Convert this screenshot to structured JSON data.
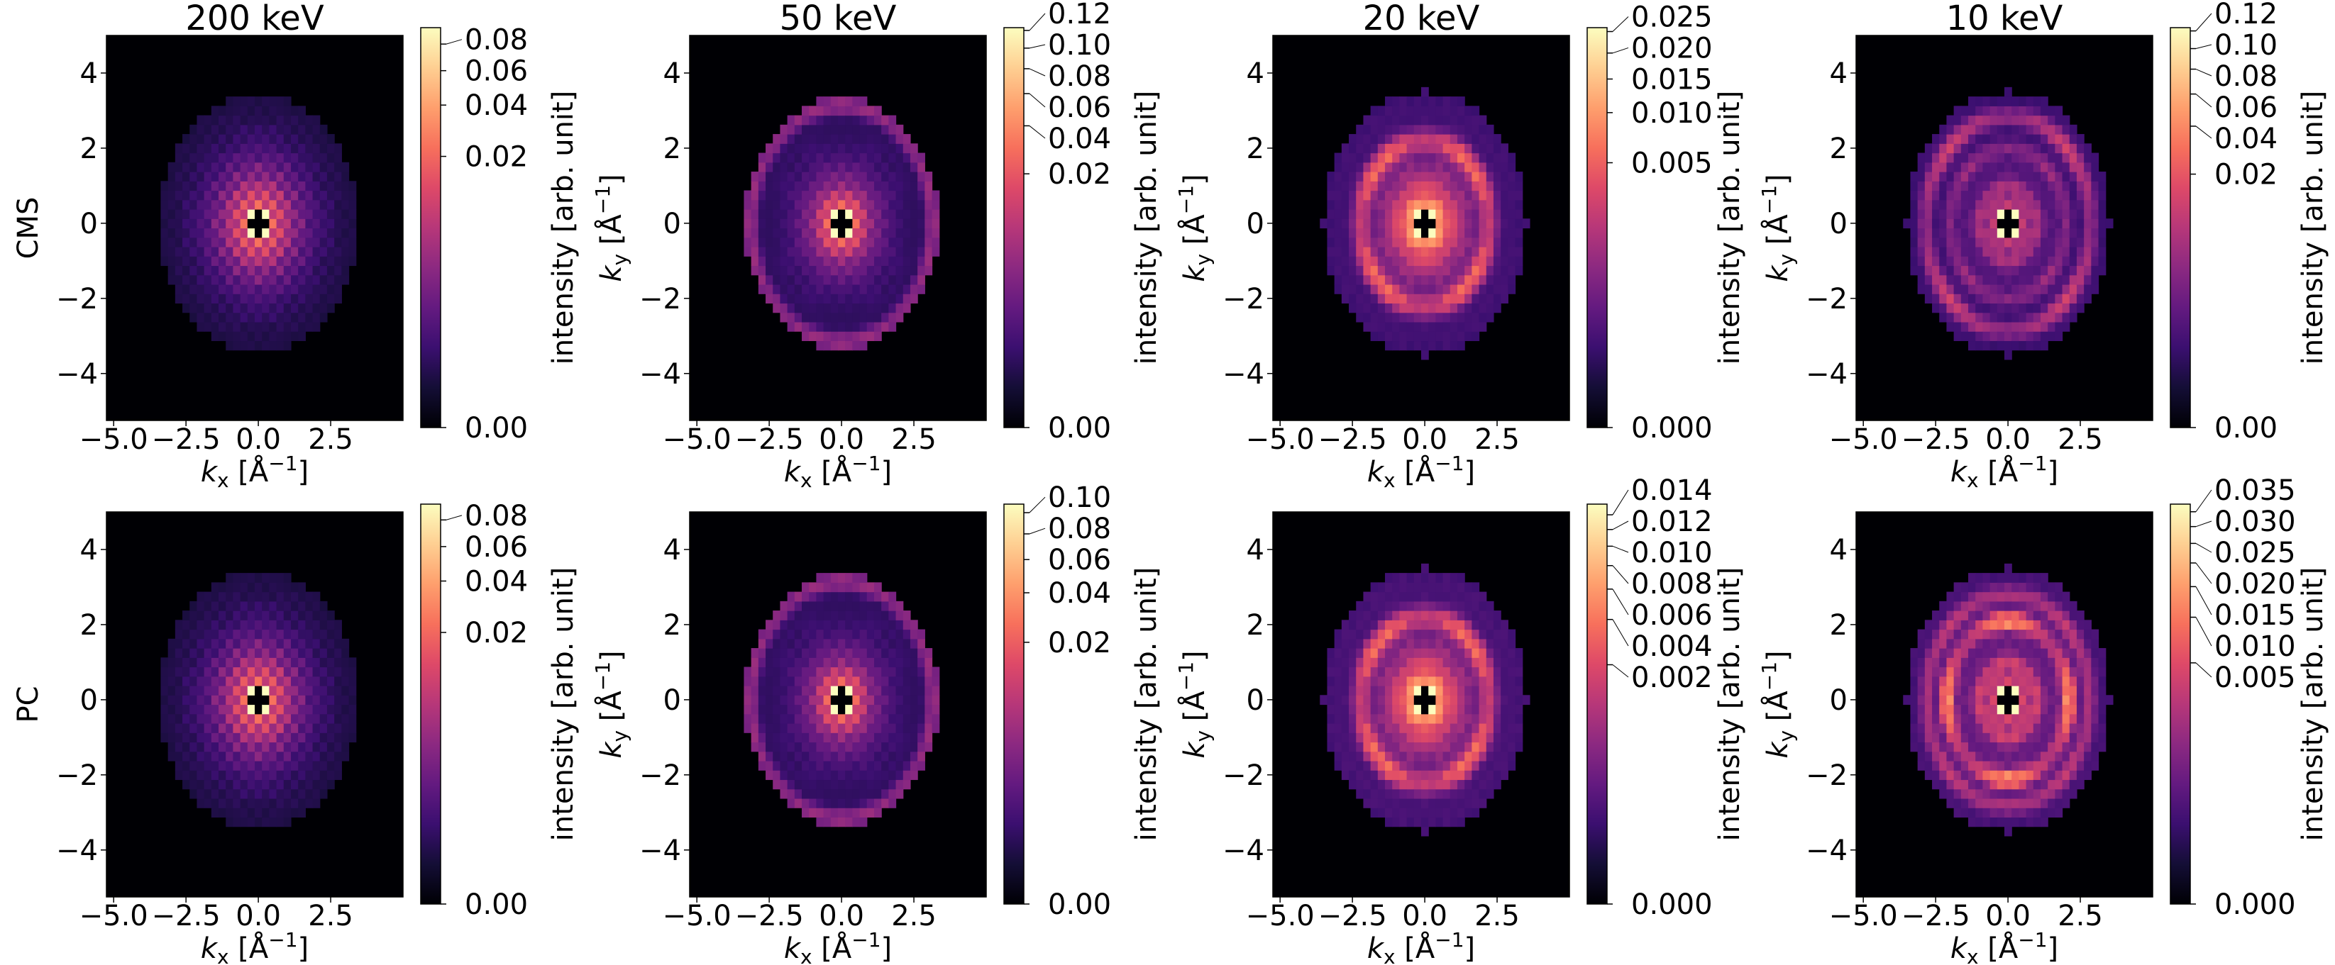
{
  "figure": {
    "row_labels": [
      "CMS",
      "PC"
    ],
    "column_titles": [
      "200 keV",
      "50 keV",
      "20 keV",
      "10 keV"
    ]
  },
  "chart_data": [
    {
      "type": "heatmap",
      "row": "CMS",
      "title": "200 keV",
      "colormap": "magma",
      "background": "#000004",
      "xlabel": {
        "var": "k",
        "sub": "x",
        "unit": " [Å",
        "exp": "−1",
        "close": "]"
      },
      "ylabel": {
        "var": "k",
        "sub": "y",
        "unit": " [Å",
        "exp": "−1",
        "close": "]"
      },
      "xlim": [
        -5.25,
        5.0
      ],
      "ylim": [
        -5.25,
        5.0
      ],
      "xticks": [
        -5.0,
        -2.5,
        0.0,
        2.5
      ],
      "xtick_labels": [
        "−5.0",
        "−2.5",
        "0.0",
        "2.5"
      ],
      "yticks": [
        4,
        2,
        0,
        -2,
        -4
      ],
      "ytick_labels": [
        "4",
        "2",
        "0",
        "−2",
        "−4"
      ],
      "colorbar": {
        "label": "intensity [arb. unit]",
        "norm": "power",
        "gamma": 0.25,
        "vmin": 0,
        "vmax": 0.0946,
        "ticks": [
          0,
          0.02,
          0.04,
          0.06,
          0.08
        ],
        "tick_labels": [
          "0.00",
          "0.02",
          "0.04",
          "0.06",
          "0.08"
        ]
      },
      "pixel_size": 0.25,
      "cutoff_radius": 3.45,
      "center_mask": "cross",
      "diagonal_peak": 0.1,
      "central_decay": {
        "amplitude": 0.09,
        "length": 0.35,
        "checker": 0.5
      },
      "rings": [],
      "background_level": 2e-05
    },
    {
      "type": "heatmap",
      "row": "CMS",
      "title": "50 keV",
      "colormap": "magma",
      "background": "#000004",
      "xlabel": {
        "var": "k",
        "sub": "x",
        "unit": " [Å",
        "exp": "−1",
        "close": "]"
      },
      "ylabel": {
        "var": "k",
        "sub": "y",
        "unit": " [Å",
        "exp": "−1",
        "close": "]"
      },
      "xlim": [
        -5.25,
        5.0
      ],
      "ylim": [
        -5.25,
        5.0
      ],
      "xticks": [
        -5.0,
        -2.5,
        0.0,
        2.5
      ],
      "xtick_labels": [
        "−5.0",
        "−2.5",
        "0.0",
        "2.5"
      ],
      "yticks": [
        4,
        2,
        0,
        -2,
        -4
      ],
      "ytick_labels": [
        "4",
        "2",
        "0",
        "−2",
        "−4"
      ],
      "colorbar": {
        "label": "intensity [arb. unit]",
        "norm": "power",
        "gamma": 0.25,
        "vmin": 0,
        "vmax": 0.1234,
        "ticks": [
          0,
          0.02,
          0.04,
          0.06,
          0.08,
          0.1,
          0.12
        ],
        "tick_labels": [
          "0.00",
          "0.02",
          "0.04",
          "0.06",
          "0.08",
          "0.10",
          "0.12"
        ]
      },
      "pixel_size": 0.25,
      "cutoff_radius": 3.35,
      "center_mask": "cross",
      "diagonal_peak": 0.13,
      "central_decay": {
        "amplitude": 0.12,
        "length": 0.3,
        "checker": 0.4
      },
      "rings": [
        {
          "radius": 3.15,
          "intensity": 0.004,
          "width": 0.12,
          "anisotropy": 0.2
        }
      ],
      "background_level": 0.0001
    },
    {
      "type": "heatmap",
      "row": "CMS",
      "title": "20 keV",
      "colormap": "magma",
      "background": "#000004",
      "xlabel": {
        "var": "k",
        "sub": "x",
        "unit": " [Å",
        "exp": "−1",
        "close": "]"
      },
      "ylabel": {
        "var": "k",
        "sub": "y",
        "unit": " [Å",
        "exp": "−1",
        "close": "]"
      },
      "xlim": [
        -5.25,
        5.0
      ],
      "ylim": [
        -5.25,
        5.0
      ],
      "xticks": [
        -5.0,
        -2.5,
        0.0,
        2.5
      ],
      "xtick_labels": [
        "−5.0",
        "−2.5",
        "0.0",
        "2.5"
      ],
      "yticks": [
        4,
        2,
        0,
        -2,
        -4
      ],
      "ytick_labels": [
        "4",
        "2",
        "0",
        "−2",
        "−4"
      ],
      "colorbar": {
        "label": "intensity [arb. unit]",
        "norm": "power",
        "gamma": 0.25,
        "vmin": 0,
        "vmax": 0.026,
        "ticks": [
          0,
          0.005,
          0.01,
          0.015,
          0.02,
          0.025
        ],
        "tick_labels": [
          "0.000",
          "0.005",
          "0.010",
          "0.015",
          "0.020",
          "0.025"
        ]
      },
      "pixel_size": 0.25,
      "cutoff_radius": 3.5,
      "center_mask": "cross",
      "diagonal_peak": 0.03,
      "central_decay": {
        "amplitude": 0.042,
        "length": 0.36,
        "checker": 0.1
      },
      "rings": [
        {
          "radius": 2.2,
          "intensity": 0.004,
          "width": 0.15,
          "anisotropy": -0.5
        }
      ],
      "background_level": 5e-05
    },
    {
      "type": "heatmap",
      "row": "CMS",
      "title": "10 keV",
      "colormap": "magma",
      "background": "#000004",
      "xlabel": {
        "var": "k",
        "sub": "x",
        "unit": " [Å",
        "exp": "−1",
        "close": "]"
      },
      "ylabel": {
        "var": "k",
        "sub": "y",
        "unit": " [Å",
        "exp": "−1",
        "close": "]"
      },
      "xlim": [
        -5.25,
        5.0
      ],
      "ylim": [
        -5.25,
        5.0
      ],
      "xticks": [
        -5.0,
        -2.5,
        0.0,
        2.5
      ],
      "xtick_labels": [
        "−5.0",
        "−2.5",
        "0.0",
        "2.5"
      ],
      "yticks": [
        4,
        2,
        0,
        -2,
        -4
      ],
      "ytick_labels": [
        "4",
        "2",
        "0",
        "−2",
        "−4"
      ],
      "colorbar": {
        "label": "intensity [arb. unit]",
        "norm": "power",
        "gamma": 0.25,
        "vmin": 0,
        "vmax": 0.124,
        "ticks": [
          0,
          0.02,
          0.04,
          0.06,
          0.08,
          0.1,
          0.12
        ],
        "tick_labels": [
          "0.00",
          "0.02",
          "0.04",
          "0.06",
          "0.08",
          "0.10",
          "0.12"
        ]
      },
      "pixel_size": 0.25,
      "cutoff_radius": 3.5,
      "center_mask": "cross",
      "diagonal_peak": 0.13,
      "central_decay": {
        "amplitude": 0.058,
        "length": 0.3,
        "checker": 0.3
      },
      "rings": [
        {
          "radius": 1.0,
          "intensity": 0.003,
          "width": 0.13,
          "anisotropy": 0.3
        },
        {
          "radius": 2.0,
          "intensity": 0.003,
          "width": 0.13,
          "anisotropy": -0.3
        },
        {
          "radius": 2.85,
          "intensity": 0.007,
          "width": 0.13,
          "anisotropy": -0.6
        }
      ],
      "background_level": 0.0002
    },
    {
      "type": "heatmap",
      "row": "PC",
      "title": "200 keV",
      "colormap": "magma",
      "background": "#000004",
      "xlabel": {
        "var": "k",
        "sub": "x",
        "unit": " [Å",
        "exp": "−1",
        "close": "]"
      },
      "ylabel": {
        "var": "k",
        "sub": "y",
        "unit": " [Å",
        "exp": "−1",
        "close": "]"
      },
      "xlim": [
        -5.25,
        5.0
      ],
      "ylim": [
        -5.25,
        5.0
      ],
      "xticks": [
        -5.0,
        -2.5,
        0.0,
        2.5
      ],
      "xtick_labels": [
        "−5.0",
        "−2.5",
        "0.0",
        "2.5"
      ],
      "yticks": [
        4,
        2,
        0,
        -2,
        -4
      ],
      "ytick_labels": [
        "4",
        "2",
        "0",
        "−2",
        "−4"
      ],
      "colorbar": {
        "label": "intensity [arb. unit]",
        "norm": "power",
        "gamma": 0.25,
        "vmin": 0,
        "vmax": 0.094,
        "ticks": [
          0,
          0.02,
          0.04,
          0.06,
          0.08
        ],
        "tick_labels": [
          "0.00",
          "0.02",
          "0.04",
          "0.06",
          "0.08"
        ]
      },
      "pixel_size": 0.25,
      "cutoff_radius": 3.45,
      "center_mask": "cross",
      "diagonal_peak": 0.1,
      "central_decay": {
        "amplitude": 0.09,
        "length": 0.35,
        "checker": 0.5
      },
      "rings": [],
      "background_level": 2e-05
    },
    {
      "type": "heatmap",
      "row": "PC",
      "title": "50 keV",
      "colormap": "magma",
      "background": "#000004",
      "xlabel": {
        "var": "k",
        "sub": "x",
        "unit": " [Å",
        "exp": "−1",
        "close": "]"
      },
      "ylabel": {
        "var": "k",
        "sub": "y",
        "unit": " [Å",
        "exp": "−1",
        "close": "]"
      },
      "xlim": [
        -5.25,
        5.0
      ],
      "ylim": [
        -5.25,
        5.0
      ],
      "xticks": [
        -5.0,
        -2.5,
        0.0,
        2.5
      ],
      "xtick_labels": [
        "−5.0",
        "−2.5",
        "0.0",
        "2.5"
      ],
      "yticks": [
        4,
        2,
        0,
        -2,
        -4
      ],
      "ytick_labels": [
        "4",
        "2",
        "0",
        "−2",
        "−4"
      ],
      "colorbar": {
        "label": "intensity [arb. unit]",
        "norm": "power",
        "gamma": 0.25,
        "vmin": 0,
        "vmax": 0.109,
        "ticks": [
          0,
          0.02,
          0.04,
          0.06,
          0.08,
          0.1
        ],
        "tick_labels": [
          "0.00",
          "0.02",
          "0.04",
          "0.06",
          "0.08",
          "0.10"
        ]
      },
      "pixel_size": 0.25,
      "cutoff_radius": 3.35,
      "center_mask": "cross",
      "diagonal_peak": 0.12,
      "central_decay": {
        "amplitude": 0.1,
        "length": 0.3,
        "checker": 0.4
      },
      "rings": [
        {
          "radius": 3.15,
          "intensity": 0.0035,
          "width": 0.12,
          "anisotropy": 0.2
        }
      ],
      "background_level": 0.0001
    },
    {
      "type": "heatmap",
      "row": "PC",
      "title": "20 keV",
      "colormap": "magma",
      "background": "#000004",
      "xlabel": {
        "var": "k",
        "sub": "x",
        "unit": " [Å",
        "exp": "−1",
        "close": "]"
      },
      "ylabel": {
        "var": "k",
        "sub": "y",
        "unit": " [Å",
        "exp": "−1",
        "close": "]"
      },
      "xlim": [
        -5.25,
        5.0
      ],
      "ylim": [
        -5.25,
        5.0
      ],
      "xticks": [
        -5.0,
        -2.5,
        0.0,
        2.5
      ],
      "xtick_labels": [
        "−5.0",
        "−2.5",
        "0.0",
        "2.5"
      ],
      "yticks": [
        4,
        2,
        0,
        -2,
        -4
      ],
      "ytick_labels": [
        "4",
        "2",
        "0",
        "−2",
        "−4"
      ],
      "colorbar": {
        "label": "intensity [arb. unit]",
        "norm": "power",
        "gamma": 0.25,
        "vmin": 0,
        "vmax": 0.0156,
        "ticks": [
          0,
          0.002,
          0.004,
          0.006,
          0.008,
          0.01,
          0.012,
          0.014
        ],
        "tick_labels": [
          "0.000",
          "0.002",
          "0.004",
          "0.006",
          "0.008",
          "0.010",
          "0.012",
          "0.014"
        ]
      },
      "pixel_size": 0.25,
      "cutoff_radius": 3.5,
      "center_mask": "cross",
      "diagonal_peak": 0.02,
      "central_decay": {
        "amplitude": 0.025,
        "length": 0.36,
        "checker": 0.1
      },
      "rings": [
        {
          "radius": 2.2,
          "intensity": 0.0025,
          "width": 0.15,
          "anisotropy": -0.5
        }
      ],
      "background_level": 4e-05
    },
    {
      "type": "heatmap",
      "row": "PC",
      "title": "10 keV",
      "colormap": "magma",
      "background": "#000004",
      "xlabel": {
        "var": "k",
        "sub": "x",
        "unit": " [Å",
        "exp": "−1",
        "close": "]"
      },
      "ylabel": {
        "var": "k",
        "sub": "y",
        "unit": " [Å",
        "exp": "−1",
        "close": "]"
      },
      "xlim": [
        -5.25,
        5.0
      ],
      "ylim": [
        -5.25,
        5.0
      ],
      "xticks": [
        -5.0,
        -2.5,
        0.0,
        2.5
      ],
      "xtick_labels": [
        "−5.0",
        "−2.5",
        "0.0",
        "2.5"
      ],
      "yticks": [
        4,
        2,
        0,
        -2,
        -4
      ],
      "ytick_labels": [
        "4",
        "2",
        "0",
        "−2",
        "−4"
      ],
      "colorbar": {
        "label": "intensity [arb. unit]",
        "norm": "power",
        "gamma": 0.25,
        "vmin": 0,
        "vmax": 0.0378,
        "ticks": [
          0,
          0.005,
          0.01,
          0.015,
          0.02,
          0.025,
          0.03,
          0.035
        ],
        "tick_labels": [
          "0.000",
          "0.005",
          "0.010",
          "0.015",
          "0.020",
          "0.025",
          "0.030",
          "0.035"
        ]
      },
      "pixel_size": 0.25,
      "cutoff_radius": 3.5,
      "center_mask": "cross",
      "diagonal_peak": 0.04,
      "central_decay": {
        "amplitude": 0.02,
        "length": 0.35,
        "checker": 0.3
      },
      "rings": [
        {
          "radius": 1.0,
          "intensity": 0.002,
          "width": 0.13,
          "anisotropy": 0.3
        },
        {
          "radius": 2.1,
          "intensity": 0.008,
          "width": 0.13,
          "anisotropy": 0.7
        },
        {
          "radius": 2.8,
          "intensity": 0.002,
          "width": 0.13,
          "anisotropy": -0.3
        }
      ],
      "background_level": 0.0001
    }
  ]
}
